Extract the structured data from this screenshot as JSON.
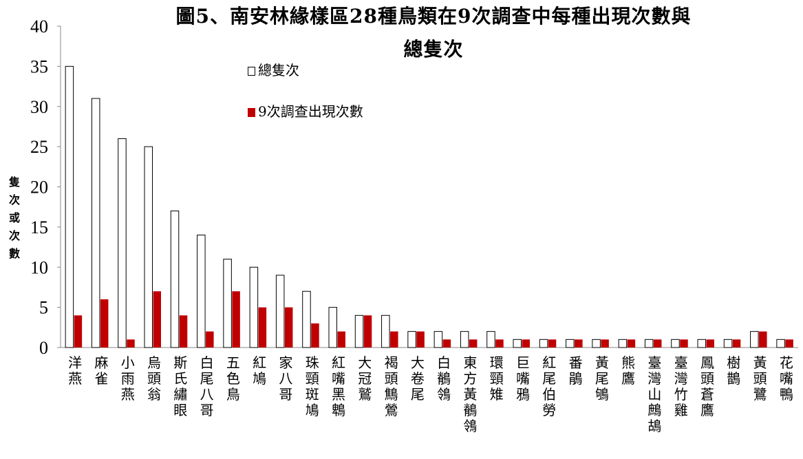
{
  "chart_data": {
    "type": "bar",
    "title_line1": "圖5、南安林緣樣區28種鳥類在9次調查中每種出現次數與",
    "title_line2": "總隻次",
    "ylabel": "隻次或次數",
    "ylim": [
      0,
      40
    ],
    "yticks": [
      0,
      5,
      10,
      15,
      20,
      25,
      30,
      35,
      40
    ],
    "legend_position": "top-center",
    "grid": false,
    "categories": [
      "洋燕",
      "麻雀",
      "小雨燕",
      "烏頭翁",
      "斯氏繡眼",
      "白尾八哥",
      "五色鳥",
      "紅鳩",
      "家八哥",
      "珠頸斑鳩",
      "紅嘴黑鵯",
      "大冠鷲",
      "褐頭鷦鶯",
      "大卷尾",
      "白鶺鴒",
      "東方黃鶺鴒",
      "環頸雉",
      "巨嘴鴉",
      "紅尾伯勞",
      "番鵑",
      "黃尾鴝",
      "熊鷹",
      "臺灣山鷓鴣",
      "臺灣竹雞",
      "鳳頭蒼鷹",
      "樹鵲",
      "黃頭鷺",
      "花嘴鴨"
    ],
    "series": [
      {
        "name": "總隻次",
        "color": "#ffffff",
        "values": [
          35,
          31,
          26,
          25,
          17,
          14,
          11,
          10,
          9,
          7,
          5,
          4,
          4,
          2,
          2,
          2,
          2,
          1,
          1,
          1,
          1,
          1,
          1,
          1,
          1,
          1,
          2,
          1
        ]
      },
      {
        "name": "9次調查出現次數",
        "color": "#c00000",
        "values": [
          4,
          6,
          1,
          7,
          4,
          2,
          7,
          5,
          5,
          3,
          2,
          4,
          2,
          2,
          1,
          1,
          1,
          1,
          1,
          1,
          1,
          1,
          1,
          1,
          1,
          1,
          2,
          1
        ]
      }
    ]
  }
}
